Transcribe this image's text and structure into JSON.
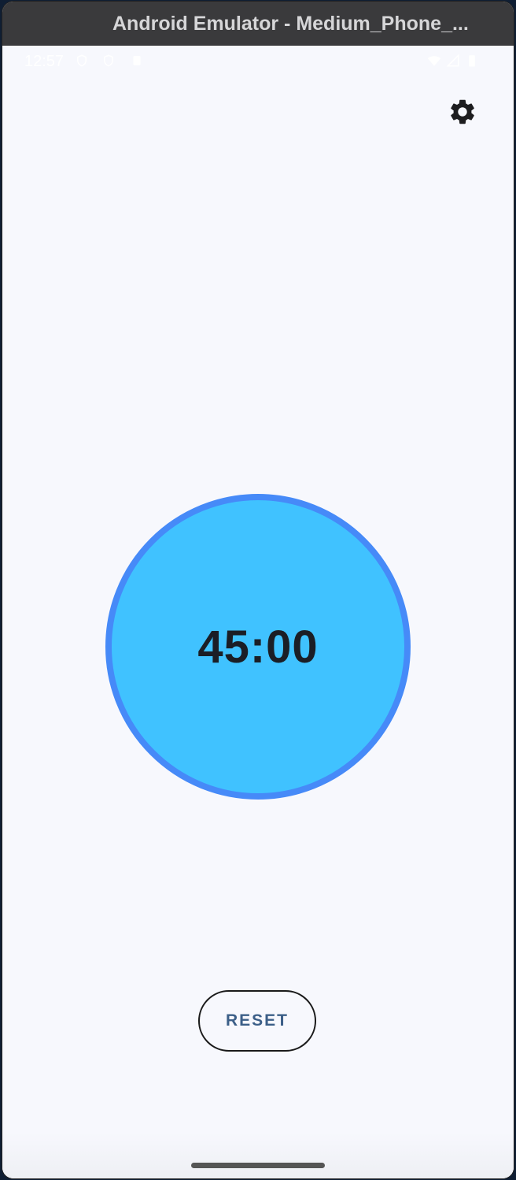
{
  "window": {
    "title": "Android Emulator - Medium_Phone_..."
  },
  "status_bar": {
    "time": "12:57"
  },
  "app": {
    "timer_display": "45:00",
    "reset_label": "RESET"
  },
  "colors": {
    "background": "#f7f8fd",
    "timer_fill": "#40c2ff",
    "timer_ring": "#468af8",
    "reset_text": "#3c5f88",
    "timer_text": "#1b1e26"
  },
  "icons": {
    "settings": "gear-icon"
  }
}
